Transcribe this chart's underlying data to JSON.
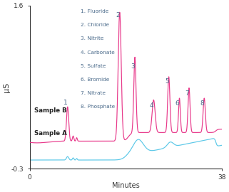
{
  "xlabel": "Minutes",
  "ylabel": "μS",
  "xlim": [
    0,
    38
  ],
  "ylim": [
    -0.3,
    1.6
  ],
  "background_color": "#ffffff",
  "legend_items": [
    "1. Fluoride",
    "2. Chloride",
    "3. Nitrite",
    "4. Carbonate",
    "5. Sulfate",
    "6. Bromide",
    "7. Nitrate",
    "8. Phosphate"
  ],
  "sample_b_color": "#e8388a",
  "sample_a_color": "#5bc8e8",
  "label_color": "#4a6a8a",
  "axis_color": "#333333",
  "sample_label_color": "#222222"
}
